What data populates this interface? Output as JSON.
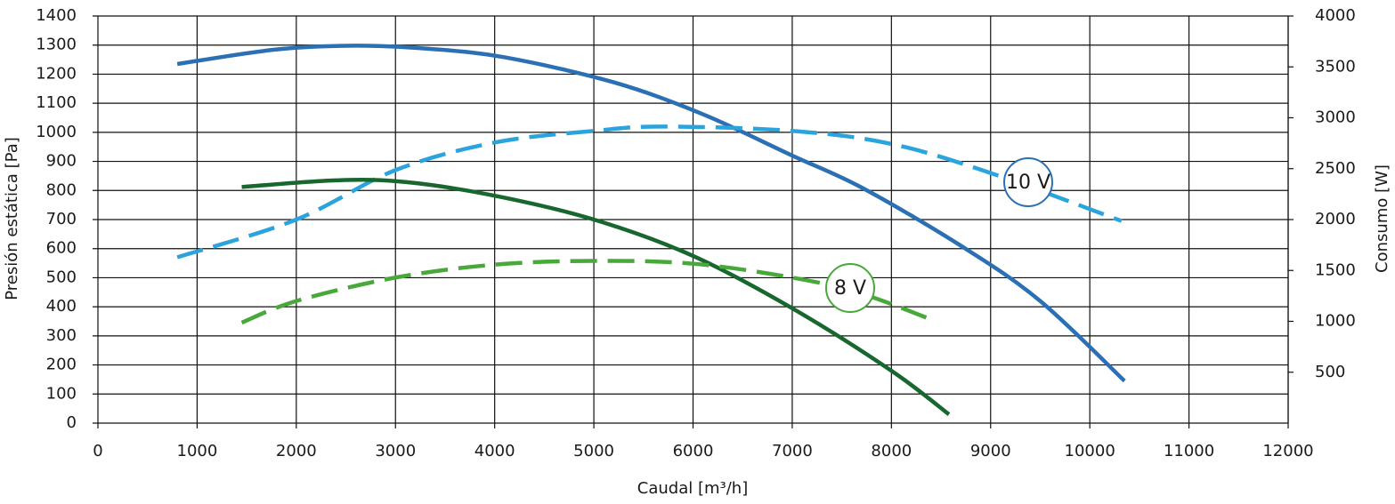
{
  "chart_data": {
    "type": "line",
    "xlabel": "Caudal [m³/h]",
    "ylabel": "Presión estática [Pa]",
    "y2label": "Consumo [W]",
    "xlim": [
      0,
      12000
    ],
    "xticks": [
      0,
      1000,
      2000,
      3000,
      4000,
      5000,
      6000,
      7000,
      8000,
      9000,
      10000,
      11000,
      12000
    ],
    "ylim": [
      0,
      1400
    ],
    "yticks": [
      0,
      100,
      200,
      300,
      400,
      500,
      600,
      700,
      800,
      900,
      1000,
      1100,
      1200,
      1300,
      1400
    ],
    "y2lim": [
      0,
      4000
    ],
    "y2ticks": [
      500,
      1000,
      1500,
      2000,
      2500,
      3000,
      3500,
      4000
    ],
    "grid": true,
    "series": [
      {
        "color": "#2b70b5",
        "dashed": false,
        "x": [
          800,
          1800,
          2600,
          3300,
          4100,
          5200,
          6100,
          7000,
          7700,
          8700,
          9500,
          10350
        ],
        "values": [
          1235,
          1285,
          1298,
          1288,
          1258,
          1172,
          1062,
          920,
          810,
          610,
          420,
          145
        ]
      },
      {
        "color": "#2ba3dc",
        "dashed": true,
        "axis": "y2",
        "x": [
          800,
          2000,
          3000,
          4000,
          5000,
          5700,
          7000,
          8000,
          9000,
          10320
        ],
        "values": [
          1629,
          2000,
          2486,
          2757,
          2871,
          2914,
          2871,
          2743,
          2457,
          1986
        ]
      },
      {
        "color": "#17672f",
        "dashed": false,
        "x": [
          1450,
          2400,
          3100,
          4000,
          5000,
          6000,
          7000,
          8000,
          8580
        ],
        "values": [
          812,
          835,
          829,
          782,
          700,
          575,
          395,
          180,
          30
        ]
      },
      {
        "color": "#48a83a",
        "dashed": true,
        "axis": "y2",
        "x": [
          1450,
          2000,
          3000,
          4000,
          5000,
          6000,
          7000,
          7700,
          8450
        ],
        "values": [
          987,
          1200,
          1430,
          1557,
          1594,
          1566,
          1430,
          1271,
          1000
        ]
      }
    ],
    "annotations": [
      {
        "text": "10 V",
        "color": "#2b70b5"
      },
      {
        "text": "8 V",
        "color": "#48a83a"
      }
    ]
  }
}
